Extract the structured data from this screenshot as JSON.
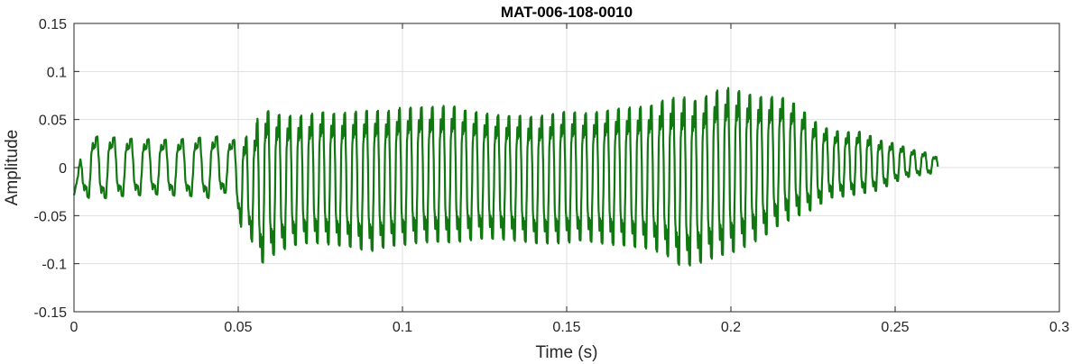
{
  "chart_data": {
    "type": "line",
    "title": "MAT-006-108-0010",
    "xlabel": "Time (s)",
    "ylabel": "Amplitude",
    "xlim": [
      0,
      0.3
    ],
    "ylim": [
      -0.15,
      0.15
    ],
    "xticks": [
      0,
      0.05,
      0.1,
      0.15,
      0.2,
      0.25,
      0.3
    ],
    "xtick_labels": [
      "0",
      "0.05",
      "0.1",
      "0.15",
      "0.2",
      "0.25",
      "0.3"
    ],
    "yticks": [
      -0.15,
      -0.1,
      -0.05,
      0,
      0.05,
      0.1,
      0.15
    ],
    "ytick_labels": [
      "-0.15",
      "-0.1",
      "-0.05",
      "0",
      "0.05",
      "0.1",
      "0.15"
    ],
    "grid": true,
    "series": [
      {
        "color": "#117711",
        "x": [
          0.0,
          0.003,
          0.006,
          0.009,
          0.012,
          0.015,
          0.018,
          0.021,
          0.024,
          0.027,
          0.03,
          0.033,
          0.036,
          0.039,
          0.042,
          0.045,
          0.048,
          0.051,
          0.053,
          0.055,
          0.057,
          0.06,
          0.065,
          0.07,
          0.075,
          0.08,
          0.085,
          0.09,
          0.095,
          0.1,
          0.105,
          0.11,
          0.115,
          0.12,
          0.125,
          0.13,
          0.135,
          0.14,
          0.145,
          0.15,
          0.155,
          0.16,
          0.165,
          0.17,
          0.175,
          0.18,
          0.185,
          0.19,
          0.195,
          0.2,
          0.205,
          0.21,
          0.215,
          0.22,
          0.225,
          0.23,
          0.235,
          0.24,
          0.245,
          0.25,
          0.255,
          0.26,
          0.263
        ],
        "y": [
          -0.028,
          0.036,
          0.04,
          0.041,
          0.039,
          0.038,
          0.037,
          0.037,
          0.036,
          0.036,
          0.036,
          0.037,
          0.038,
          0.039,
          0.04,
          0.04,
          0.035,
          0.04,
          0.045,
          0.055,
          0.085,
          0.075,
          0.07,
          0.07,
          0.075,
          0.072,
          0.075,
          0.078,
          0.075,
          0.08,
          0.08,
          0.08,
          0.082,
          0.075,
          0.072,
          0.07,
          0.07,
          0.068,
          0.072,
          0.075,
          0.072,
          0.075,
          0.078,
          0.08,
          0.082,
          0.09,
          0.095,
          0.09,
          0.1,
          0.104,
          0.096,
          0.09,
          0.09,
          0.08,
          0.06,
          0.048,
          0.045,
          0.045,
          0.035,
          0.03,
          0.022,
          0.018,
          0.012
        ],
        "y_min": [
          -0.03,
          -0.036,
          -0.042,
          -0.04,
          -0.038,
          -0.037,
          -0.036,
          -0.036,
          -0.035,
          -0.035,
          -0.036,
          -0.037,
          -0.037,
          -0.038,
          -0.04,
          -0.035,
          -0.03,
          -0.075,
          -0.078,
          -0.1,
          -0.12,
          -0.11,
          -0.1,
          -0.095,
          -0.095,
          -0.098,
          -0.1,
          -0.105,
          -0.1,
          -0.098,
          -0.095,
          -0.095,
          -0.095,
          -0.092,
          -0.09,
          -0.09,
          -0.092,
          -0.095,
          -0.095,
          -0.095,
          -0.092,
          -0.095,
          -0.098,
          -0.1,
          -0.102,
          -0.11,
          -0.125,
          -0.12,
          -0.115,
          -0.11,
          -0.1,
          -0.09,
          -0.075,
          -0.065,
          -0.055,
          -0.04,
          -0.038,
          -0.035,
          -0.03,
          -0.02,
          -0.012,
          -0.01,
          -0.005
        ]
      }
    ]
  }
}
